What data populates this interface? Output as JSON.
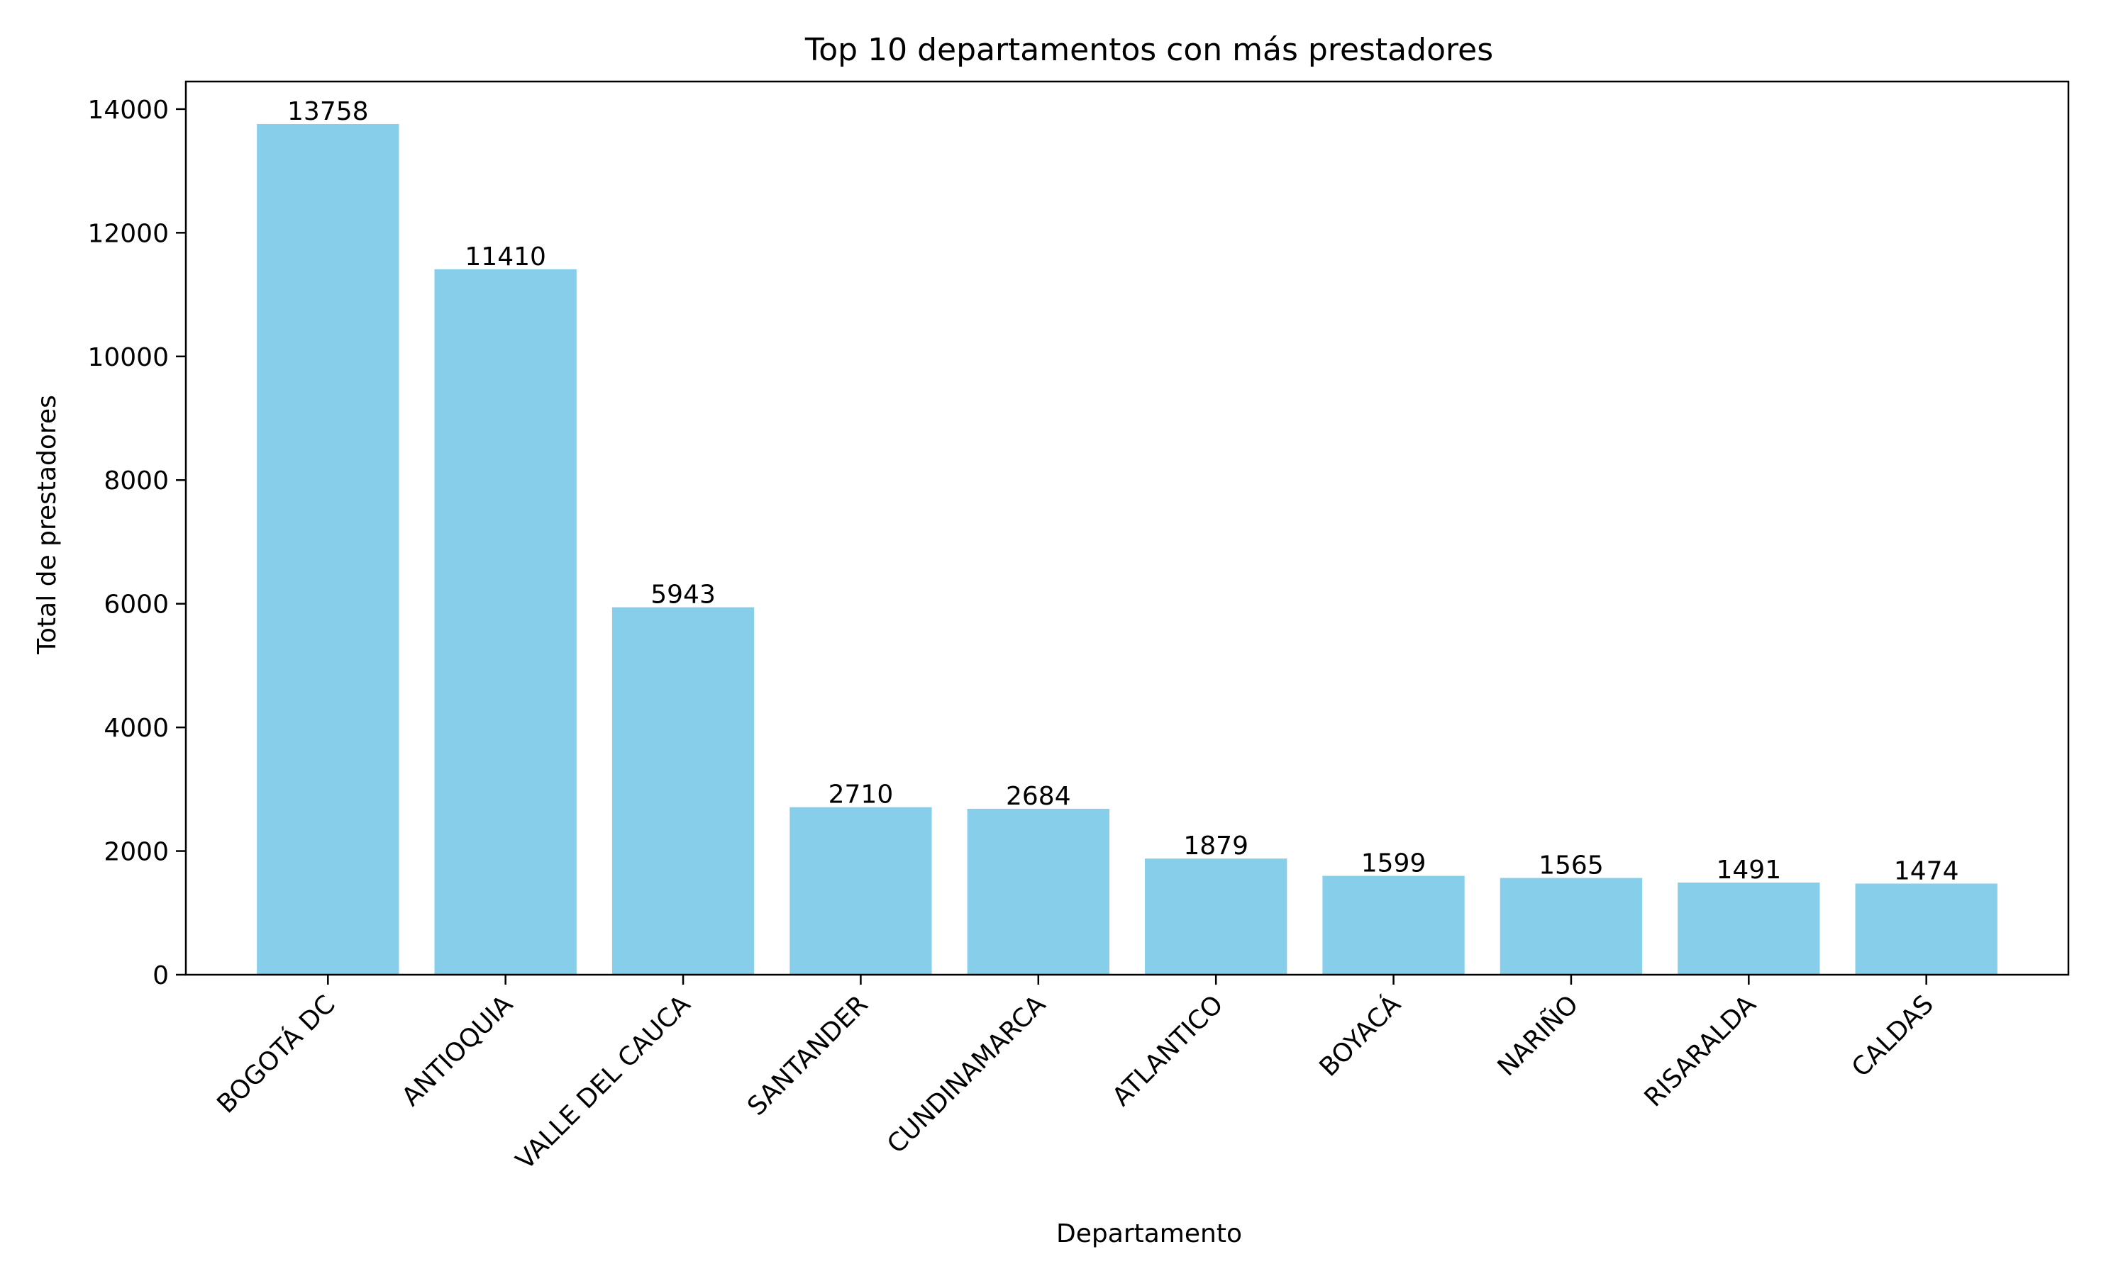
{
  "chart_data": {
    "type": "bar",
    "title": "Top 10 departamentos con más prestadores",
    "xlabel": "Departamento",
    "ylabel": "Total de prestadores",
    "categories": [
      "BOGOTÁ DC",
      "ANTIOQUIA",
      "VALLE DEL CAUCA",
      "SANTANDER",
      "CUNDINAMARCA",
      "ATLANTICO",
      "BOYACÁ",
      "NARIÑO",
      "RISARALDA",
      "CALDAS"
    ],
    "values": [
      13758,
      11410,
      5943,
      2710,
      2684,
      1879,
      1599,
      1565,
      1491,
      1474
    ],
    "data_labels": [
      "13758",
      "11410",
      "5943",
      "2710",
      "2684",
      "1879",
      "1599",
      "1565",
      "1491",
      "1474"
    ],
    "yticks": [
      0,
      2000,
      4000,
      6000,
      8000,
      10000,
      12000,
      14000
    ],
    "ytick_labels": [
      "0",
      "2000",
      "4000",
      "6000",
      "8000",
      "10000",
      "12000",
      "14000"
    ],
    "ylim": [
      0,
      14446
    ],
    "x_tick_rotation": 45,
    "grid": false,
    "bar_color": "#87CEEB"
  }
}
